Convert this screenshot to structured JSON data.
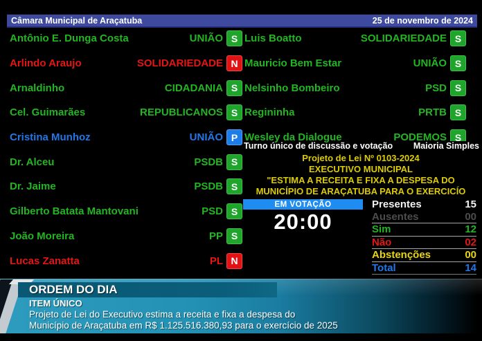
{
  "header": {
    "title": "Câmara Municipal de Araçatuba",
    "date": "25 de novembro de 2024"
  },
  "voters_left": [
    {
      "name": "Antônio E. Dunga Costa",
      "party": "UNIÃO",
      "vote": "S",
      "color": "#23b523"
    },
    {
      "name": "Arlindo Araujo",
      "party": "SOLIDARIEDADE",
      "vote": "N",
      "color": "#e51515"
    },
    {
      "name": "Arnaldinho",
      "party": "CIDADANIA",
      "vote": "S",
      "color": "#23b523"
    },
    {
      "name": "Cel. Guimarães",
      "party": "REPUBLICANOS",
      "vote": "S",
      "color": "#23b523"
    },
    {
      "name": "Cristina Munhoz",
      "party": "UNIÃO",
      "vote": "P",
      "color": "#2277e8"
    },
    {
      "name": "Dr. Alceu",
      "party": "PSDB",
      "vote": "S",
      "color": "#23b523"
    },
    {
      "name": "Dr. Jaime",
      "party": "PSDB",
      "vote": "S",
      "color": "#23b523"
    },
    {
      "name": "Gilberto Batata Mantovani",
      "party": "PSD",
      "vote": "S",
      "color": "#23b523"
    },
    {
      "name": "João Moreira",
      "party": "PP",
      "vote": "S",
      "color": "#23b523"
    },
    {
      "name": "Lucas Zanatta",
      "party": "PL",
      "vote": "N",
      "color": "#e51515"
    }
  ],
  "voters_right": [
    {
      "name": "Luis Boatto",
      "party": "SOLIDARIEDADE",
      "vote": "S",
      "color": "#23b523"
    },
    {
      "name": "Mauricio Bem Estar",
      "party": "UNIÃO",
      "vote": "S",
      "color": "#23b523"
    },
    {
      "name": "Nelsinho Bombeiro",
      "party": "PSD",
      "vote": "S",
      "color": "#23b523"
    },
    {
      "name": "Regininha",
      "party": "PRTB",
      "vote": "S",
      "color": "#23b523"
    },
    {
      "name": "Wesley da Dialogue",
      "party": "PODEMOS",
      "vote": "S",
      "color": "#23b523"
    }
  ],
  "session": {
    "turn": "Turno único de discussão e votação",
    "majority": "Maioria Simples",
    "project": "Projeto de Lei Nº 0103-2024",
    "author": "EXECUTIVO MUNICIPAL",
    "summary_line1": "\"ESTIMA A RECEITA E FIXA A DESPESA DO",
    "summary_line2": "MUNICÍPIO DE ARAÇATUBA PARA O EXERCICÍO"
  },
  "voting": {
    "status": "EM VOTAÇÃO",
    "timer": "20:00",
    "stats": [
      {
        "label": "Presentes",
        "value": "15",
        "color": "#f2f2f2"
      },
      {
        "label": "Ausentes",
        "value": "00",
        "color": "#4d4d4d"
      },
      {
        "label": "Sim",
        "value": "12",
        "color": "#23b523"
      },
      {
        "label": "Não",
        "value": "02",
        "color": "#e51515"
      },
      {
        "label": "Abstenções",
        "value": "00",
        "color": "#e8d60a"
      },
      {
        "label": "Total",
        "value": "14",
        "color": "#2277e8"
      }
    ]
  },
  "banner": {
    "title": "ORDEM DO DIA",
    "subtitle": "ITEM ÚNICO",
    "line1": "Projeto de Lei do Executivo estima a receita e fixa a despesa do",
    "line2": "Município de Araçatuba em R$ 1.125.516.380,93 para o exercício de 2025"
  },
  "colors": {
    "header_bar": "#3e4a9d",
    "vote_yes": "#1fa42c",
    "vote_no": "#e01214",
    "vote_president": "#1d7ce8",
    "status_bar": "#1f8cf2",
    "project_yellow": "#ddcc04",
    "banner_teal": "#2391b4"
  }
}
